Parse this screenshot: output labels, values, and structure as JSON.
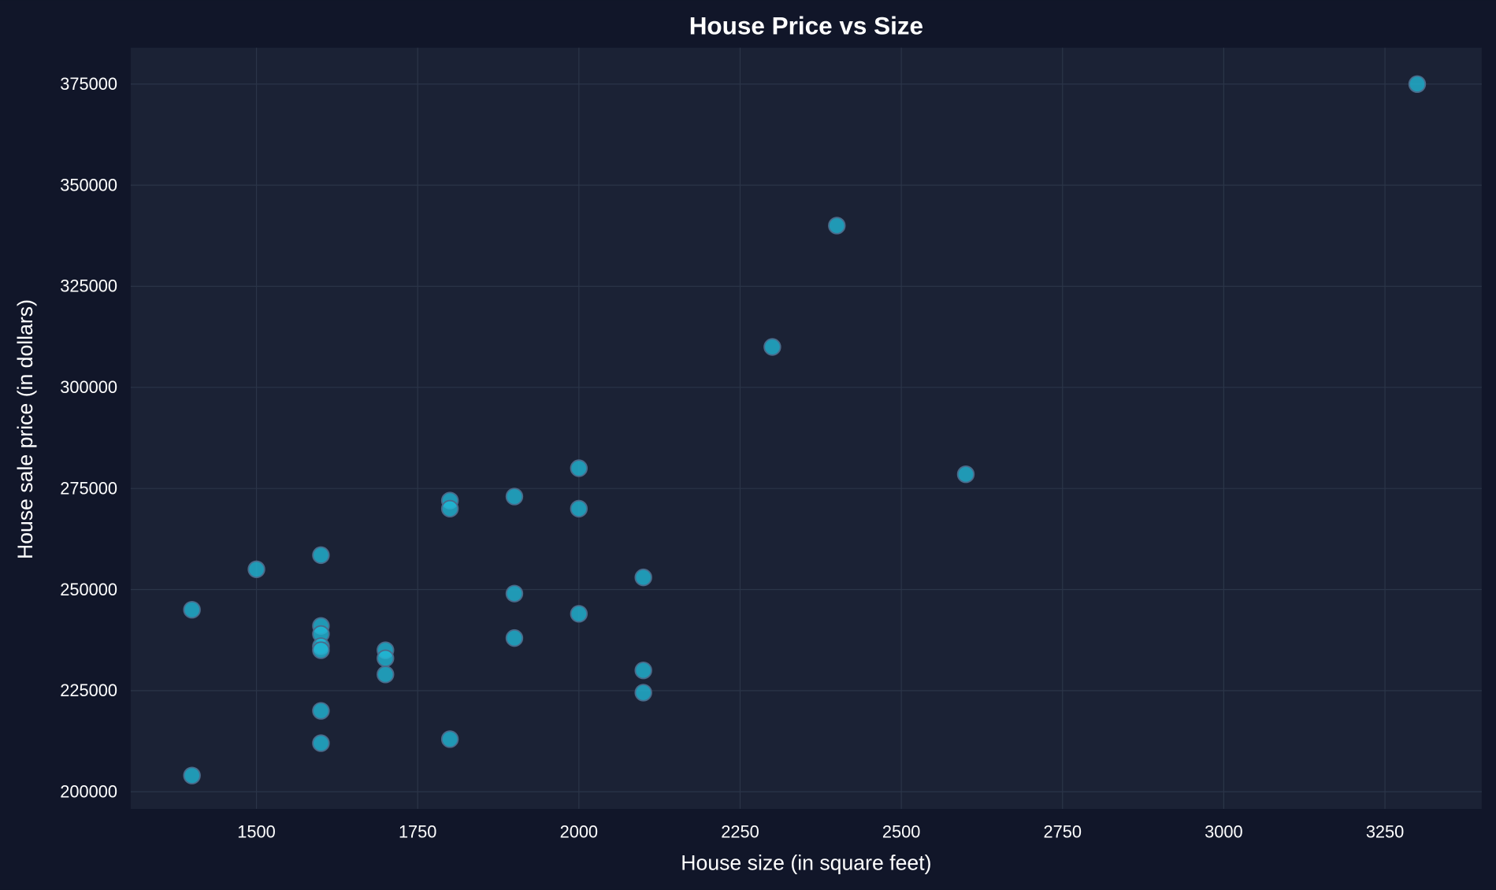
{
  "chart_data": {
    "type": "scatter",
    "title": "House Price vs Size",
    "xlabel": "House size (in square feet)",
    "ylabel": "House sale price (in dollars)",
    "xlim": [
      1305,
      3400
    ],
    "ylim": [
      195750,
      384000
    ],
    "xticks": [
      1500,
      1750,
      2000,
      2250,
      2500,
      2750,
      3000,
      3250
    ],
    "yticks": [
      200000,
      225000,
      250000,
      275000,
      300000,
      325000,
      350000,
      375000
    ],
    "grid": true,
    "colors": {
      "background": "#111629",
      "plot": "#1b2235",
      "grid": "#2b3548",
      "point": "#22b8d6",
      "edge": "#4a6a8a",
      "text": "#ffffff"
    },
    "points": [
      [
        1400,
        245000
      ],
      [
        1400,
        204000
      ],
      [
        1500,
        255000
      ],
      [
        1600,
        258500
      ],
      [
        1600,
        241000
      ],
      [
        1600,
        239000
      ],
      [
        1600,
        236000
      ],
      [
        1600,
        235000
      ],
      [
        1600,
        220000
      ],
      [
        1600,
        212000
      ],
      [
        1700,
        235000
      ],
      [
        1700,
        233000
      ],
      [
        1700,
        229000
      ],
      [
        1800,
        272000
      ],
      [
        1800,
        270000
      ],
      [
        1800,
        213000
      ],
      [
        1900,
        273000
      ],
      [
        1900,
        249000
      ],
      [
        1900,
        238000
      ],
      [
        2000,
        280000
      ],
      [
        2000,
        270000
      ],
      [
        2000,
        244000
      ],
      [
        2100,
        253000
      ],
      [
        2100,
        230000
      ],
      [
        2100,
        224500
      ],
      [
        2300,
        310000
      ],
      [
        2400,
        340000
      ],
      [
        2600,
        278500
      ],
      [
        3300,
        375000
      ]
    ]
  }
}
